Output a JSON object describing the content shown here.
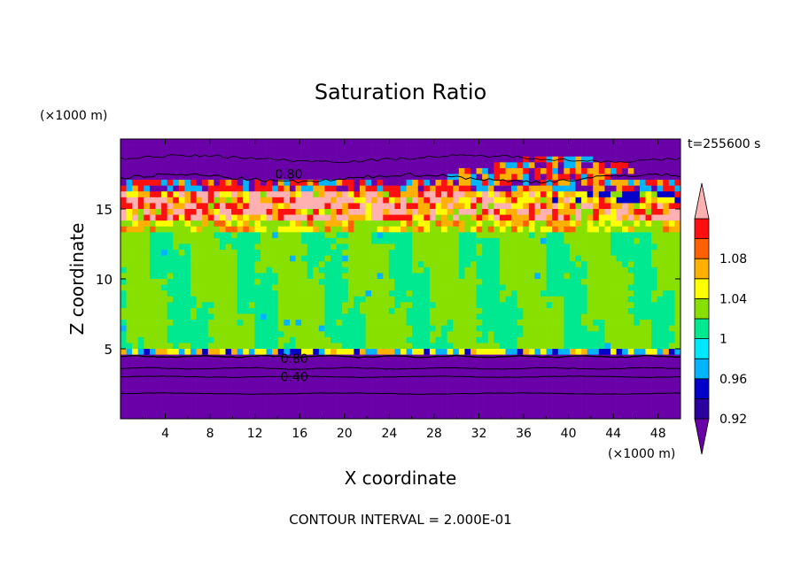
{
  "chart_data": {
    "type": "heatmap",
    "title": "Saturation Ratio",
    "xlabel": "X coordinate",
    "ylabel": "Z coordinate",
    "x_unit": "(×1000 m)",
    "y_unit": "(×1000 m)",
    "time_label": "t=255600 s",
    "footer": "CONTOUR INTERVAL = 2.000E-01",
    "xlim": [
      0,
      50
    ],
    "ylim": [
      0,
      20
    ],
    "x_ticks": [
      4,
      8,
      12,
      16,
      20,
      24,
      28,
      32,
      36,
      40,
      44,
      48
    ],
    "y_ticks": [
      5,
      10,
      15
    ],
    "colorbar": {
      "levels": [
        0.92,
        0.94,
        0.96,
        0.98,
        1.0,
        1.02,
        1.04,
        1.06,
        1.08,
        1.1
      ],
      "tick_labels": [
        "0.92",
        "0.96",
        "1",
        "1.04",
        "1.08"
      ],
      "colors": [
        "#6a00a8",
        "#2c00a0",
        "#0000c8",
        "#00b4ff",
        "#00e8ff",
        "#00e890",
        "#88e000",
        "#ffff00",
        "#ffb000",
        "#ff6000",
        "#ff1010",
        "#ffb0b0"
      ]
    },
    "layers": [
      {
        "z_range": [
          0,
          4.5
        ],
        "value_range": "< 0.92"
      },
      {
        "z_range": [
          4.5,
          13.5
        ],
        "value_range": "0.98 - 1.02"
      },
      {
        "z_range": [
          13.5,
          16.5
        ],
        "value_range": "> 1.02"
      },
      {
        "z_range": [
          16.5,
          20
        ],
        "value_range": "< 0.92"
      }
    ],
    "contour_labels": [
      {
        "text": "0.80",
        "x": 13,
        "z": 17.5
      },
      {
        "text": "0.80",
        "x": 13.5,
        "z": 4.3
      },
      {
        "text": "0.40",
        "x": 13.5,
        "z": 3.0
      }
    ],
    "grid": false
  }
}
